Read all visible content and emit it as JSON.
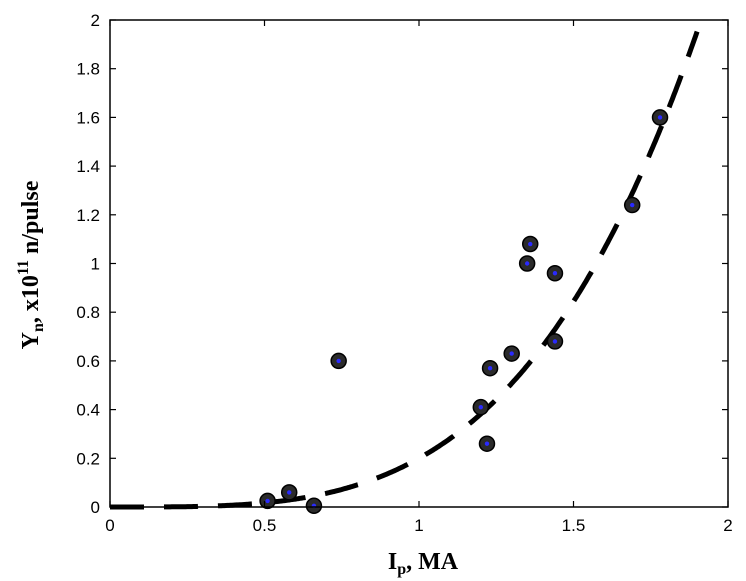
{
  "chart_data": {
    "type": "scatter",
    "xlabel": {
      "main": "I",
      "sub": "p",
      "rest": ", MA"
    },
    "ylabel": {
      "main": "Y",
      "sub": "n",
      "mid": ", x10",
      "sup": "11",
      "rest": " n/pulse"
    },
    "xlim": [
      0,
      2
    ],
    "ylim": [
      0,
      2
    ],
    "x_ticks": [
      "0",
      "0.5",
      "1",
      "1.5",
      "2"
    ],
    "y_ticks": [
      "0",
      "0.2",
      "0.4",
      "0.6",
      "0.8",
      "1",
      "1.2",
      "1.4",
      "1.6",
      "1.8",
      "2"
    ],
    "grid": false,
    "series": [
      {
        "kind": "points",
        "points": [
          [
            0.51,
            0.025
          ],
          [
            0.58,
            0.06
          ],
          [
            0.66,
            0.005
          ],
          [
            0.74,
            0.6
          ],
          [
            1.2,
            0.41
          ],
          [
            1.22,
            0.26
          ],
          [
            1.23,
            0.57
          ],
          [
            1.3,
            0.63
          ],
          [
            1.35,
            1.0
          ],
          [
            1.36,
            1.08
          ],
          [
            1.44,
            0.96
          ],
          [
            1.44,
            0.68
          ],
          [
            1.69,
            1.24
          ],
          [
            1.78,
            1.6
          ]
        ]
      },
      {
        "kind": "fit",
        "style": "dashed",
        "fit": {
          "a": 0.2,
          "b": 3.55,
          "x0": 1.0
        },
        "xrange": [
          0,
          1.9
        ]
      }
    ]
  }
}
